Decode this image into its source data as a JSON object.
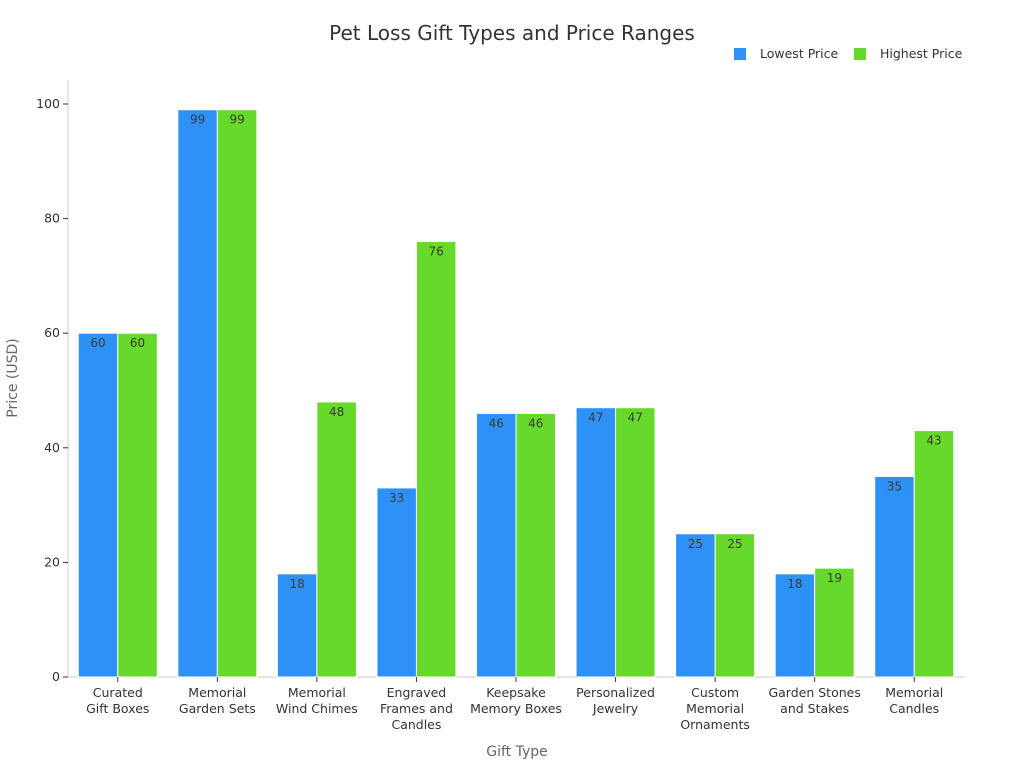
{
  "chart_data": {
    "type": "bar",
    "title": "Pet Loss Gift Types and Price Ranges",
    "xlabel": "Gift Type",
    "ylabel": "Price (USD)",
    "ylim": [
      0,
      100
    ],
    "yticks": [
      0,
      20,
      40,
      60,
      80,
      100
    ],
    "grid": false,
    "legend_position": "top-right",
    "categories": [
      [
        "Curated",
        "Gift Boxes"
      ],
      [
        "Memorial",
        "Garden Sets"
      ],
      [
        "Memorial",
        "Wind Chimes"
      ],
      [
        "Engraved",
        "Frames and",
        "Candles"
      ],
      [
        "Keepsake",
        "Memory Boxes"
      ],
      [
        "Personalized",
        "Jewelry"
      ],
      [
        "Custom",
        "Memorial",
        "Ornaments"
      ],
      [
        "Garden Stones",
        "and Stakes"
      ],
      [
        "Memorial",
        "Candles"
      ]
    ],
    "series": [
      {
        "name": "Lowest Price",
        "color": "#2e91f7",
        "values": [
          60,
          99,
          18,
          33,
          46,
          47,
          25,
          18,
          35
        ]
      },
      {
        "name": "Highest Price",
        "color": "#66d92a",
        "values": [
          60,
          99,
          48,
          76,
          46,
          47,
          25,
          19,
          43
        ]
      }
    ]
  }
}
